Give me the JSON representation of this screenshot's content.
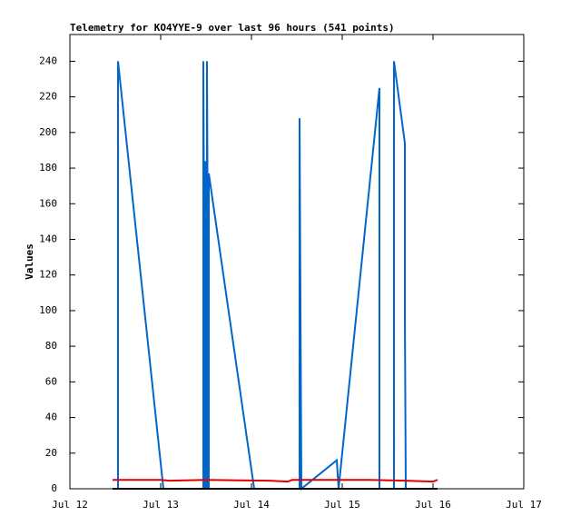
{
  "chart_data": {
    "type": "line",
    "title": "Telemetry for KO4YYE-9 over last 96 hours (541 points)",
    "y_label": "Values",
    "xlim": [
      12,
      17
    ],
    "xticks": [
      {
        "value": 12,
        "label": "Jul 12"
      },
      {
        "value": 13,
        "label": "Jul 13"
      },
      {
        "value": 14,
        "label": "Jul 14"
      },
      {
        "value": 15,
        "label": "Jul 15"
      },
      {
        "value": 16,
        "label": "Jul 16"
      },
      {
        "value": 17,
        "label": "Jul 17"
      }
    ],
    "ylim": [
      0,
      255
    ],
    "yticks": [
      0,
      20,
      40,
      60,
      80,
      100,
      120,
      140,
      160,
      180,
      200,
      220,
      240
    ],
    "series": [
      {
        "color": "#0066cc",
        "x": [
          12.53,
          12.53,
          13.03,
          13.47,
          13.47,
          13.49,
          13.49,
          13.51,
          13.51,
          13.53,
          13.53,
          14.03,
          14.53,
          14.53,
          14.55,
          14.94,
          14.96,
          15.41,
          15.41,
          15.57,
          15.57,
          15.69,
          15.69,
          15.7
        ],
        "values": [
          0,
          240,
          0,
          0,
          240,
          0,
          184,
          0,
          240,
          0,
          177,
          0,
          0,
          208,
          0,
          16,
          0,
          225,
          0,
          0,
          240,
          194,
          97,
          0
        ]
      },
      {
        "color": "#dd0000",
        "x": [
          12.47,
          13.0,
          13.1,
          13.5,
          14.2,
          14.4,
          14.45,
          15.3,
          15.7,
          16.0,
          16.05
        ],
        "values": [
          5,
          5,
          4.5,
          5,
          4.5,
          4,
          5,
          5,
          4.5,
          4,
          5
        ]
      },
      {
        "color": "#000000",
        "x": [
          12.47,
          16.05
        ],
        "values": [
          0,
          0
        ]
      }
    ]
  }
}
